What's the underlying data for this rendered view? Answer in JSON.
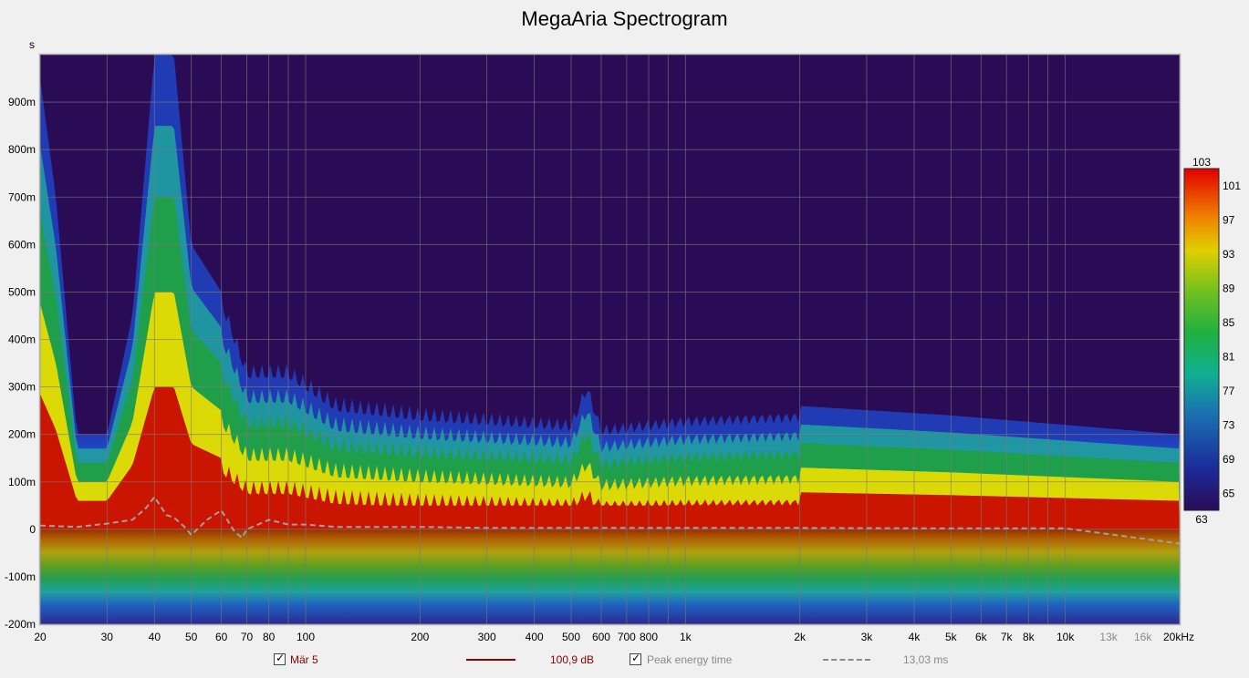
{
  "chart_data": {
    "type": "heatmap",
    "title": "MegaAria Spectrogram",
    "xscale": "log",
    "xlim": [
      20,
      20000
    ],
    "ylim": [
      -0.2,
      1.0
    ],
    "y_unit": "s",
    "x_tick_labels": [
      {
        "v": 20,
        "t": "20"
      },
      {
        "v": 30,
        "t": "30"
      },
      {
        "v": 40,
        "t": "40"
      },
      {
        "v": 50,
        "t": "50"
      },
      {
        "v": 60,
        "t": "60"
      },
      {
        "v": 70,
        "t": "70"
      },
      {
        "v": 80,
        "t": "80"
      },
      {
        "v": 100,
        "t": "100"
      },
      {
        "v": 200,
        "t": "200"
      },
      {
        "v": 300,
        "t": "300"
      },
      {
        "v": 400,
        "t": "400"
      },
      {
        "v": 500,
        "t": "500"
      },
      {
        "v": 600,
        "t": "600"
      },
      {
        "v": 700,
        "t": "700"
      },
      {
        "v": 800,
        "t": "800"
      },
      {
        "v": 1000,
        "t": "1k"
      },
      {
        "v": 2000,
        "t": "2k"
      },
      {
        "v": 3000,
        "t": "3k"
      },
      {
        "v": 4000,
        "t": "4k"
      },
      {
        "v": 5000,
        "t": "5k"
      },
      {
        "v": 6000,
        "t": "6k"
      },
      {
        "v": 7000,
        "t": "7k"
      },
      {
        "v": 8000,
        "t": "8k"
      },
      {
        "v": 10000,
        "t": "10k"
      },
      {
        "v": 13000,
        "t": "13k"
      },
      {
        "v": 16000,
        "t": "16k"
      },
      {
        "v": 20000,
        "t": "20kHz"
      }
    ],
    "x_tick_labels_dim": [
      "13k",
      "16k"
    ],
    "y_tick_labels": [
      {
        "v": 0.9,
        "t": "900m"
      },
      {
        "v": 0.8,
        "t": "800m"
      },
      {
        "v": 0.7,
        "t": "700m"
      },
      {
        "v": 0.6,
        "t": "600m"
      },
      {
        "v": 0.5,
        "t": "500m"
      },
      {
        "v": 0.4,
        "t": "400m"
      },
      {
        "v": 0.3,
        "t": "300m"
      },
      {
        "v": 0.2,
        "t": "200m"
      },
      {
        "v": 0.1,
        "t": "100m"
      },
      {
        "v": 0.0,
        "t": "0"
      },
      {
        "v": -0.1,
        "t": "-100m"
      },
      {
        "v": -0.2,
        "t": "-200m"
      }
    ],
    "colorbar": {
      "min": 63,
      "max": 103,
      "top_label": "103",
      "bottom_label": "63",
      "tick_labels": [
        "101",
        "97",
        "93",
        "89",
        "85",
        "81",
        "77",
        "73",
        "69",
        "65"
      ],
      "tick_values": [
        101,
        97,
        93,
        89,
        85,
        81,
        77,
        73,
        69,
        65
      ]
    },
    "decay_envelope_s": [
      {
        "f": 20,
        "t": 0.95
      },
      {
        "f": 22,
        "t": 0.7
      },
      {
        "f": 25,
        "t": 0.2
      },
      {
        "f": 30,
        "t": 0.2
      },
      {
        "f": 35,
        "t": 0.45
      },
      {
        "f": 40,
        "t": 1.0
      },
      {
        "f": 45,
        "t": 1.0
      },
      {
        "f": 50,
        "t": 0.6
      },
      {
        "f": 60,
        "t": 0.5
      },
      {
        "f": 70,
        "t": 0.35
      },
      {
        "f": 90,
        "t": 0.35
      },
      {
        "f": 120,
        "t": 0.28
      },
      {
        "f": 200,
        "t": 0.26
      },
      {
        "f": 500,
        "t": 0.24
      },
      {
        "f": 550,
        "t": 0.32
      },
      {
        "f": 600,
        "t": 0.23
      },
      {
        "f": 1000,
        "t": 0.25
      },
      {
        "f": 2000,
        "t": 0.26
      },
      {
        "f": 5000,
        "t": 0.24
      },
      {
        "f": 10000,
        "t": 0.22
      },
      {
        "f": 20000,
        "t": 0.2
      }
    ],
    "series": [
      {
        "name": "Peak energy time",
        "style": "dashed",
        "color": "#a0a0a0",
        "x": [
          20,
          25,
          30,
          35,
          38,
          40,
          43,
          45,
          48,
          50,
          55,
          60,
          65,
          68,
          70,
          80,
          90,
          100,
          120,
          150,
          200,
          300,
          500,
          1000,
          2000,
          5000,
          10000,
          20000
        ],
        "y": [
          0.008,
          0.005,
          0.012,
          0.02,
          0.045,
          0.068,
          0.03,
          0.025,
          0.005,
          -0.012,
          0.02,
          0.04,
          -0.005,
          -0.018,
          0.0,
          0.02,
          0.01,
          0.01,
          0.005,
          0.005,
          0.005,
          0.003,
          0.003,
          0.003,
          0.003,
          0.002,
          0.002,
          -0.03
        ]
      }
    ]
  },
  "legend": {
    "item1_label": "Mär 5",
    "item1_color": "#8b0000",
    "item1_value": "100,9 dB",
    "item2_label": "Peak energy time",
    "item2_value": "13,03 ms"
  },
  "colors": {
    "background": "#2a0b55",
    "grid": "#7a7a7a",
    "ridge_red": "#c80000",
    "ridge_yellow": "#f0e000",
    "ridge_green": "#20a040",
    "ridge_blue": "#2040c0"
  }
}
